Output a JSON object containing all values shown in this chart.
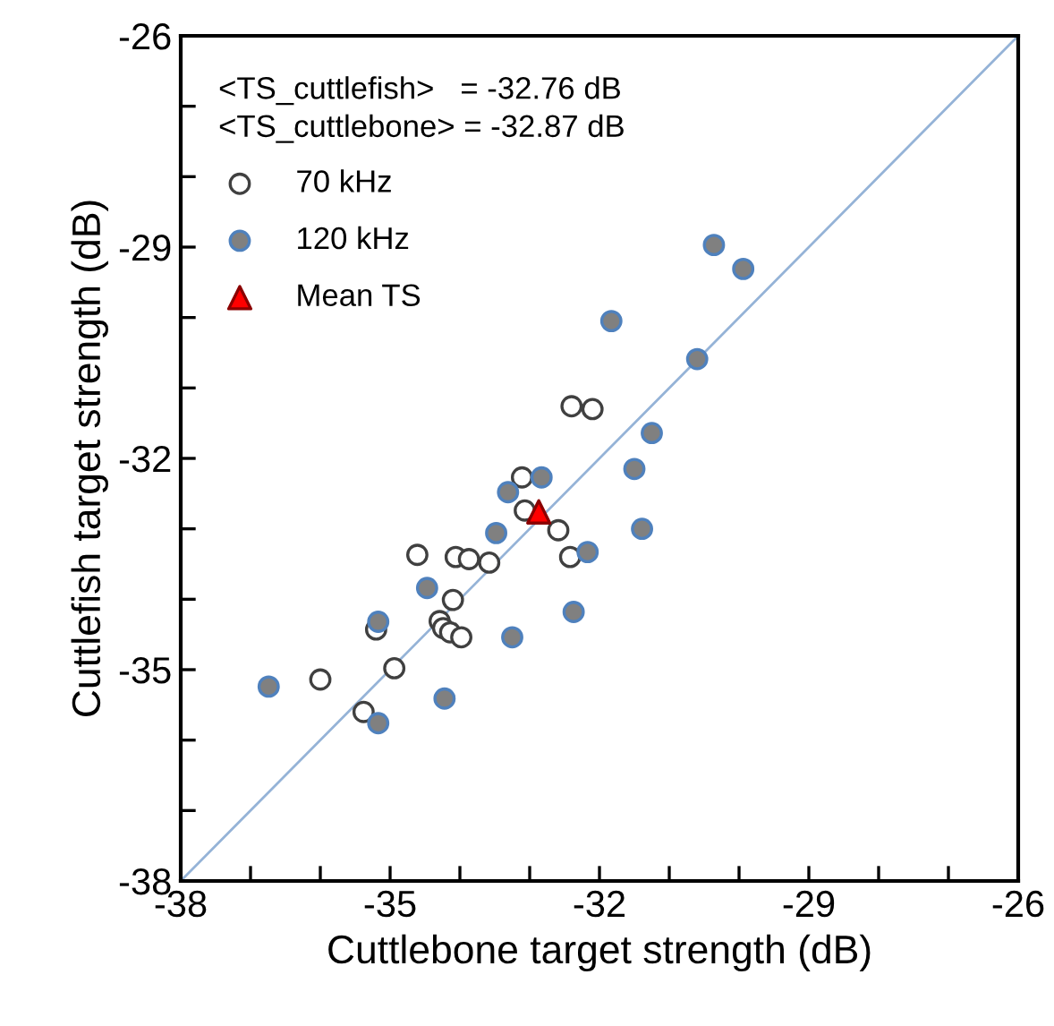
{
  "chart_data": {
    "type": "scatter",
    "xlabel": "Cuttlebone target strength (dB)",
    "ylabel": "Cuttlefish target strength (dB)",
    "xlim": [
      -38,
      -26
    ],
    "ylim": [
      -38,
      -26
    ],
    "xticks": [
      -38,
      {
        "value": -37,
        "label": null
      },
      {
        "value": -36,
        "label": null
      },
      -35,
      {
        "value": -34,
        "label": null
      },
      {
        "value": -33,
        "label": null
      },
      -32,
      {
        "value": -31,
        "label": null
      },
      {
        "value": -30,
        "label": null
      },
      -29,
      {
        "value": -28,
        "label": null
      },
      {
        "value": -27,
        "label": null
      },
      -26
    ],
    "yticks": [
      -38,
      {
        "value": -37,
        "label": null
      },
      {
        "value": -36,
        "label": null
      },
      -35,
      {
        "value": -34,
        "label": null
      },
      {
        "value": -33,
        "label": null
      },
      -32,
      {
        "value": -31,
        "label": null
      },
      {
        "value": -30,
        "label": null
      },
      -29,
      {
        "value": -28,
        "label": null
      },
      {
        "value": -27,
        "label": null
      },
      -26
    ],
    "grid": false,
    "legend": "top left",
    "annotations": [
      "<TS_cuttlefish>   = -32.76 dB",
      "<TS_cuttlebone> = -32.87 dB"
    ],
    "series": [
      {
        "type": "line",
        "color": "#95b3d7",
        "x": [
          -38,
          -26
        ],
        "values": [
          -38,
          -26
        ],
        "marker": "none"
      },
      {
        "name": "70 kHz",
        "color": "#ffffff",
        "marker": "circle",
        "x": [
          -33.11,
          -33.07,
          -32.59,
          -34.61,
          -34.06,
          -33.87,
          -33.58,
          -32.42,
          -34.1,
          -34.29,
          -34.24,
          -34.14,
          -33.98,
          -35.2,
          -34.94,
          -36.0,
          -35.38,
          -32.4,
          -32.1
        ],
        "values": [
          -32.27,
          -32.74,
          -33.02,
          -33.37,
          -33.4,
          -33.43,
          -33.48,
          -33.4,
          -34.01,
          -34.31,
          -34.41,
          -34.47,
          -34.54,
          -34.43,
          -34.98,
          -35.14,
          -35.6,
          -31.26,
          -31.3
        ]
      },
      {
        "name": "120 kHz",
        "color": "#808080",
        "marker": "circle",
        "x": [
          -30.36,
          -29.94,
          -31.83,
          -30.6,
          -31.25,
          -31.5,
          -32.83,
          -31.39,
          -32.17,
          -32.37,
          -33.31,
          -33.48,
          -34.47,
          -35.17,
          -33.25,
          -34.22,
          -36.74,
          -35.17
        ],
        "values": [
          -28.97,
          -29.31,
          -30.05,
          -30.59,
          -31.64,
          -32.15,
          -32.27,
          -33.0,
          -33.33,
          -34.18,
          -32.48,
          -33.06,
          -33.84,
          -34.32,
          -34.54,
          -35.41,
          -35.24,
          -35.76
        ]
      },
      {
        "name": "Mean TS",
        "color": "#ff0000",
        "marker": "triangle",
        "x": [
          -32.87
        ],
        "values": [
          -32.76
        ]
      }
    ]
  }
}
